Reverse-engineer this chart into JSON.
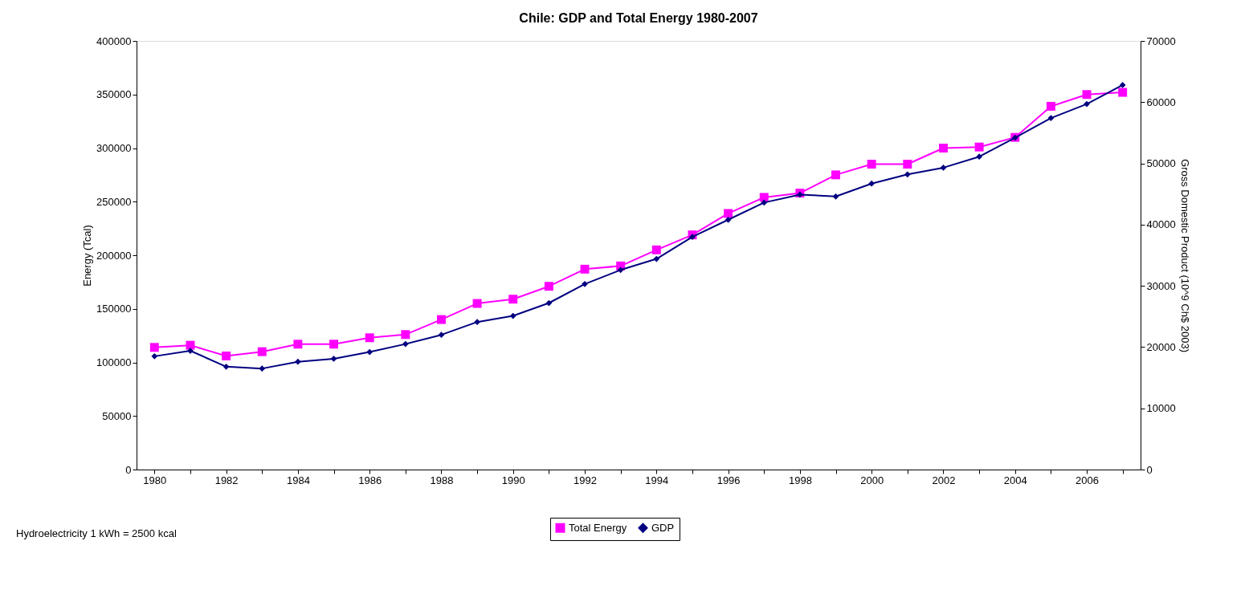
{
  "chart_data": {
    "type": "line",
    "title": "Chile: GDP and Total Energy 1980-2007",
    "categories": [
      "1980",
      null,
      "1982",
      null,
      "1984",
      null,
      "1986",
      null,
      "1988",
      null,
      "1990",
      null,
      "1992",
      null,
      "1994",
      null,
      "1996",
      null,
      "1998",
      null,
      "2000",
      null,
      "2002",
      null,
      "2004",
      null,
      "2006",
      null
    ],
    "series": [
      {
        "name": "Total Energy",
        "color": "#ff00ff",
        "marker": "square",
        "values": [
          114000,
          116000,
          106000,
          110000,
          117000,
          117000,
          123000,
          126000,
          140000,
          155000,
          159000,
          171000,
          187000,
          190000,
          205000,
          219000,
          239000,
          254000,
          258000,
          275000,
          285000,
          285000,
          300000,
          301000,
          310000,
          339000,
          350000,
          352000
        ]
      },
      {
        "name": "GDP",
        "color": "#000080",
        "marker": "diamond",
        "axis": "y2",
        "values": [
          18500,
          19400,
          16800,
          16500,
          17600,
          18100,
          19200,
          20500,
          22000,
          24100,
          25100,
          27200,
          30300,
          32600,
          34400,
          38000,
          40800,
          43600,
          44900,
          44600,
          46700,
          48200,
          49300,
          51100,
          54200,
          57400,
          59700,
          62800
        ]
      }
    ],
    "ylabel": "Energy (Tcal)",
    "y2label": "Gross Domestic Product (10^9 Ch$ 2003)",
    "ylim": [
      0,
      400000
    ],
    "yticks": [
      0,
      50000,
      100000,
      150000,
      200000,
      250000,
      300000,
      350000,
      400000
    ],
    "y2lim": [
      0,
      70000
    ],
    "y2ticks": [
      0,
      10000,
      20000,
      30000,
      40000,
      50000,
      60000,
      70000
    ],
    "grid": false,
    "legend": "bottom",
    "annotations": [
      "Hydroelectricity 1 kWh = 2500 kcal"
    ]
  }
}
